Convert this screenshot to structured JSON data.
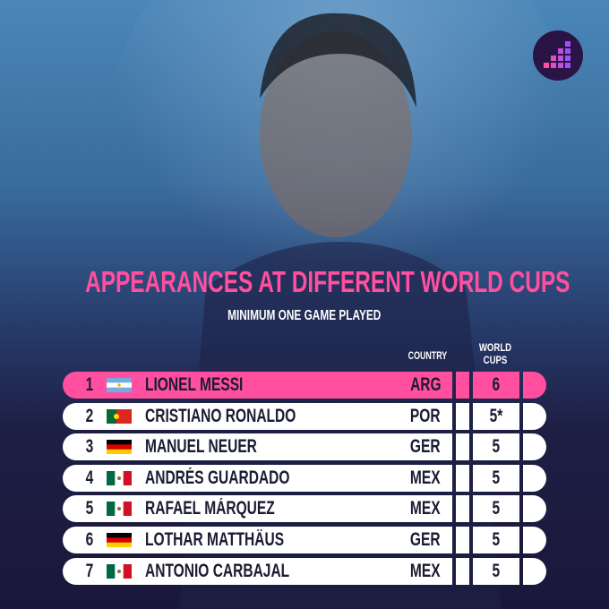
{
  "title": "APPEARANCES AT DIFFERENT WORLD CUPS",
  "subtitle": "MINIMUM ONE GAME PLAYED",
  "table": {
    "headers": [
      "COUNTRY",
      "WORLD CUPS"
    ],
    "rows": [
      [
        "1",
        "LIONEL MESSI",
        "ARG",
        "6"
      ],
      [
        "2",
        "CRISTIANO RONALDO",
        "POR",
        "5*"
      ],
      [
        "3",
        "MANUEL NEUER",
        "GER",
        "5"
      ],
      [
        "4",
        "ANDRÉS GUARDADO",
        "MEX",
        "5"
      ],
      [
        "5",
        "RAFAEL MÁRQUEZ",
        "MEX",
        "5"
      ],
      [
        "6",
        "LOTHAR MATTHÄUS",
        "GER",
        "5"
      ],
      [
        "7",
        "ANTONIO CARBAJAL",
        "MEX",
        "5"
      ]
    ]
  }
}
